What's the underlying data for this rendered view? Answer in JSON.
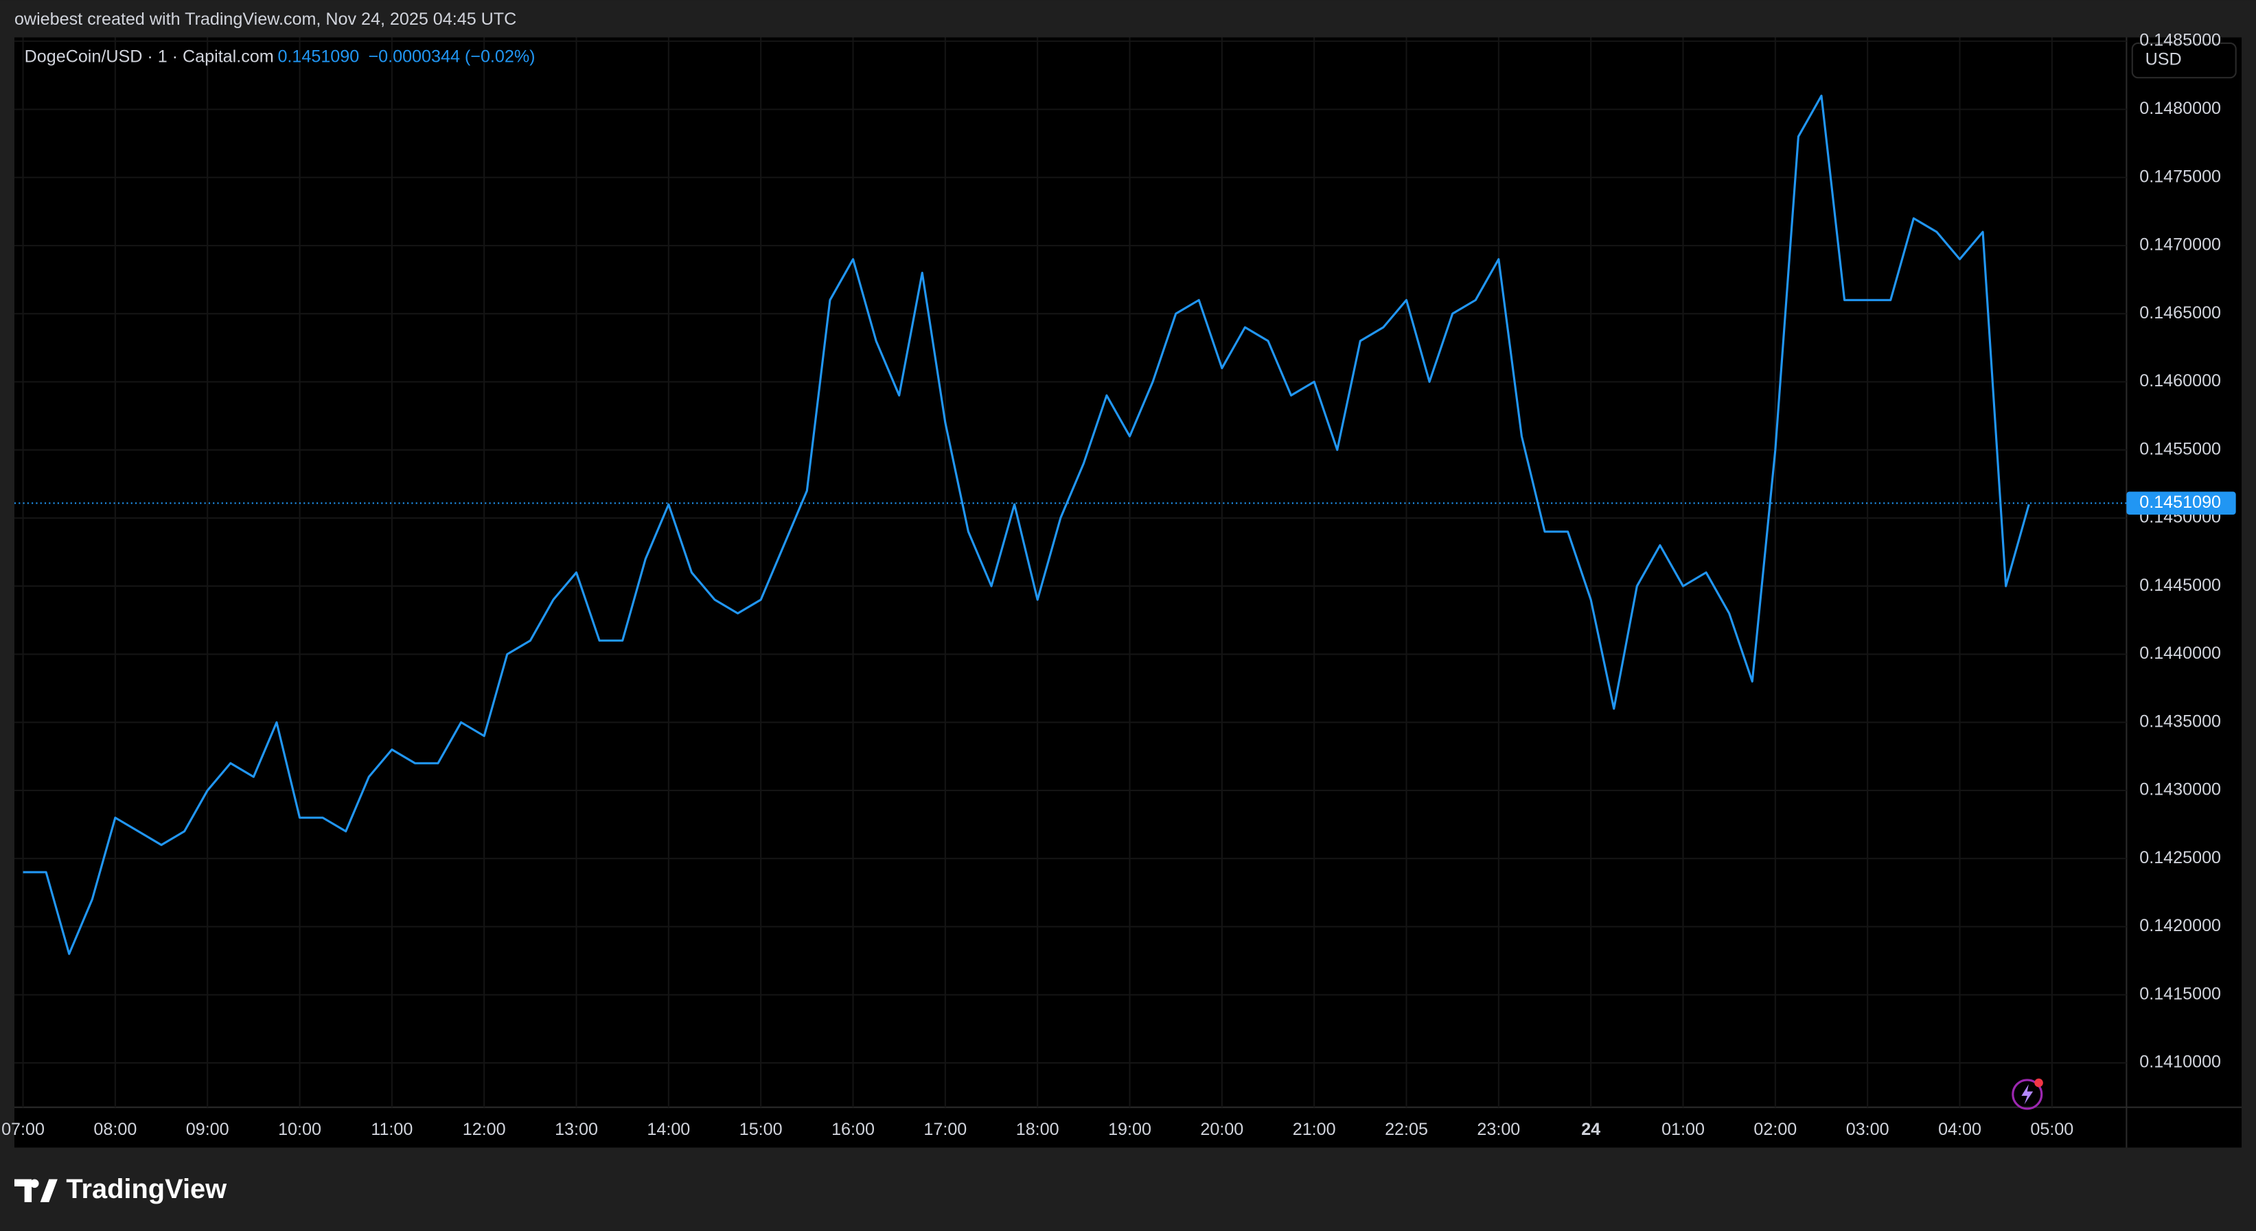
{
  "header": "owiebest created with TradingView.com, Nov 24, 2025 04:45 UTC",
  "logo": "TradingView",
  "chart_data": {
    "type": "line",
    "title": "DogeCoin/USD · 1 · Capital.com",
    "last_price": {
      "value": 0.145109,
      "label": "0.1451090"
    },
    "change": "−0.0000344 (−0.02%)",
    "currency": "USD",
    "xticks": [
      "07:00",
      "08:00",
      "09:00",
      "10:00",
      "11:00",
      "12:00",
      "13:00",
      "14:00",
      "15:00",
      "16:00",
      "17:00",
      "18:00",
      "19:00",
      "20:00",
      "21:00",
      "22:05",
      "23:00",
      "24",
      "01:00",
      "02:00",
      "03:00",
      "04:00",
      "05:00"
    ],
    "x": [
      "07:00",
      "07:15",
      "07:30",
      "07:45",
      "08:00",
      "08:15",
      "08:30",
      "08:45",
      "09:00",
      "09:15",
      "09:30",
      "09:45",
      "10:00",
      "10:15",
      "10:30",
      "10:45",
      "11:00",
      "11:15",
      "11:30",
      "11:45",
      "12:00",
      "12:15",
      "12:30",
      "12:45",
      "13:00",
      "13:15",
      "13:30",
      "13:45",
      "14:00",
      "14:15",
      "14:30",
      "14:45",
      "15:00",
      "15:15",
      "15:30",
      "15:45",
      "16:00",
      "16:15",
      "16:30",
      "16:45",
      "17:00",
      "17:15",
      "17:30",
      "17:45",
      "18:00",
      "18:15",
      "18:30",
      "18:45",
      "19:00",
      "19:15",
      "19:30",
      "19:45",
      "20:00",
      "20:15",
      "20:30",
      "20:45",
      "21:00",
      "21:15",
      "21:30",
      "21:45",
      "22:00",
      "22:15",
      "22:30",
      "22:45",
      "23:00",
      "23:15",
      "23:30",
      "23:45",
      "00:00",
      "00:15",
      "00:30",
      "00:45",
      "01:00",
      "01:15",
      "01:30",
      "01:45",
      "02:00",
      "02:15",
      "02:30",
      "02:45",
      "03:00",
      "03:15",
      "03:30",
      "03:45",
      "04:00",
      "04:15",
      "04:30",
      "04:45"
    ],
    "series": [
      {
        "name": "DogeCoin/USD",
        "color": "#2196f3",
        "values": [
          0.1424,
          0.1424,
          0.1418,
          0.1422,
          0.1428,
          0.1427,
          0.1426,
          0.1427,
          0.143,
          0.1432,
          0.1431,
          0.1435,
          0.1428,
          0.1428,
          0.1427,
          0.1431,
          0.1433,
          0.1432,
          0.1432,
          0.1435,
          0.1434,
          0.144,
          0.1441,
          0.1444,
          0.1446,
          0.1441,
          0.1441,
          0.1447,
          0.1451,
          0.1446,
          0.1444,
          0.1443,
          0.1444,
          0.1448,
          0.1452,
          0.1466,
          0.1469,
          0.1463,
          0.1459,
          0.1468,
          0.1457,
          0.1449,
          0.1445,
          0.1451,
          0.1444,
          0.145,
          0.1454,
          0.1459,
          0.1456,
          0.146,
          0.1465,
          0.1466,
          0.1461,
          0.1464,
          0.1463,
          0.1459,
          0.146,
          0.1455,
          0.1463,
          0.1464,
          0.1466,
          0.146,
          0.1465,
          0.1466,
          0.1469,
          0.1456,
          0.1449,
          0.1449,
          0.1444,
          0.1436,
          0.1445,
          0.1448,
          0.1445,
          0.1446,
          0.1443,
          0.1438,
          0.1455,
          0.1478,
          0.1481,
          0.1466,
          0.1466,
          0.1466,
          0.1472,
          0.1471,
          0.1469,
          0.1471,
          0.1445,
          0.1451
        ]
      }
    ],
    "ylim": [
      0.140674,
      0.148528
    ],
    "yticks": [
      {
        "value": 0.141,
        "label": "0.1410000"
      },
      {
        "value": 0.1415,
        "label": "0.1415000"
      },
      {
        "value": 0.142,
        "label": "0.1420000"
      },
      {
        "value": 0.1425,
        "label": "0.1425000"
      },
      {
        "value": 0.143,
        "label": "0.1430000"
      },
      {
        "value": 0.1435,
        "label": "0.1435000"
      },
      {
        "value": 0.144,
        "label": "0.1440000"
      },
      {
        "value": 0.1445,
        "label": "0.1445000"
      },
      {
        "value": 0.145,
        "label": "0.1450000"
      },
      {
        "value": 0.1455,
        "label": "0.1455000"
      },
      {
        "value": 0.146,
        "label": "0.1460000"
      },
      {
        "value": 0.1465,
        "label": "0.1465000"
      },
      {
        "value": 0.147,
        "label": "0.1470000"
      },
      {
        "value": 0.1475,
        "label": "0.1475000"
      },
      {
        "value": 0.148,
        "label": "0.1480000"
      },
      {
        "value": 0.1485,
        "label": "0.1485000"
      }
    ],
    "grid": true
  }
}
